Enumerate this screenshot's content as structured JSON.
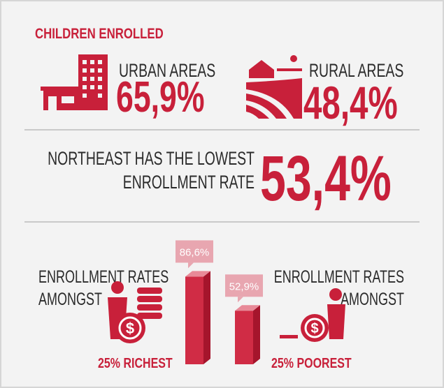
{
  "title": "CHILDREN ENROLLED",
  "urban": {
    "label": "URBAN AREAS",
    "value": "65,9%"
  },
  "rural": {
    "label": "RURAL AREAS",
    "value": "48,4%"
  },
  "region": {
    "lines": [
      "NORTHEAST HAS THE LOWEST",
      "ENROLLMENT RATE"
    ],
    "value": "53,4%"
  },
  "wealth": {
    "left_lines": [
      "ENROLLMENT RATES",
      "AMONGST"
    ],
    "left_group": "25% RICHEST",
    "right_lines": [
      "ENROLLMENT RATES",
      "AMONGST"
    ],
    "right_group": "25% POOREST",
    "bars": {
      "values": [
        86.6,
        52.9
      ],
      "value_labels": [
        "86,6%",
        "52,9%"
      ]
    }
  }
}
